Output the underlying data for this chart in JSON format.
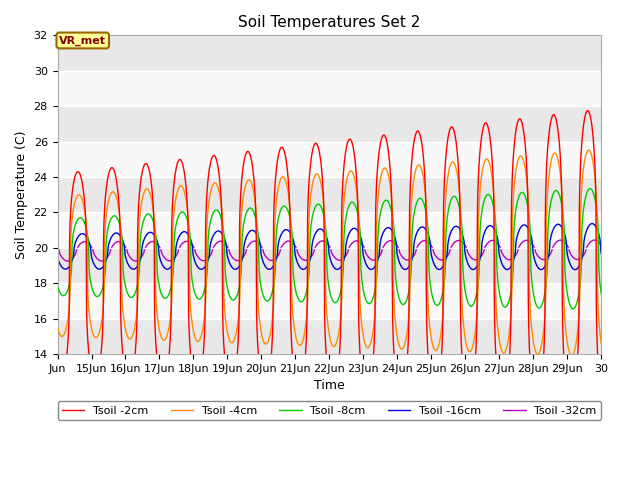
{
  "title": "Soil Temperatures Set 2",
  "xlabel": "Time",
  "ylabel": "Soil Temperature (C)",
  "ylim": [
    14,
    32
  ],
  "xlim": [
    0,
    16
  ],
  "yticks": [
    14,
    16,
    18,
    20,
    22,
    24,
    26,
    28,
    30,
    32
  ],
  "xtick_labels": [
    "Jun",
    "15Jun",
    "16Jun",
    "17Jun",
    "18Jun",
    "19Jun",
    "20Jun",
    "21Jun",
    "22Jun",
    "23Jun",
    "24Jun",
    "25Jun",
    "26Jun",
    "27Jun",
    "28Jun",
    "29Jun",
    "30"
  ],
  "series_colors": [
    "#ff0000",
    "#ff8c00",
    "#00cc00",
    "#0000dd",
    "#bb00bb"
  ],
  "series_names": [
    "Tsoil -2cm",
    "Tsoil -4cm",
    "Tsoil -8cm",
    "Tsoil -16cm",
    "Tsoil -32cm"
  ],
  "annotation_text": "VR_met",
  "bg_color": "#e8e8e8",
  "fig_bg": "#ffffff",
  "band_color1": "#e8e8e8",
  "band_color2": "#f8f8f8"
}
